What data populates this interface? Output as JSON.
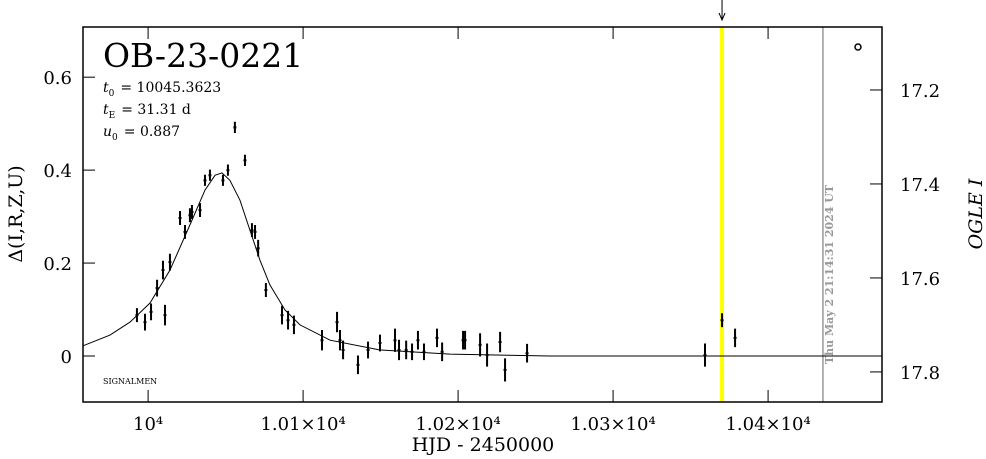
{
  "chart_data": {
    "type": "lightcurve",
    "title": "OB-23-0221",
    "parameters": [
      {
        "symbol": "t",
        "sub": "0",
        "text": "= 10045.3623"
      },
      {
        "symbol": "t",
        "sub": "E",
        "text": "= 31.31 d"
      },
      {
        "symbol": "u",
        "sub": "0",
        "text": "= 0.887"
      }
    ],
    "credit": "SIGNALMEN",
    "x_label": "HJD - 2450000",
    "y_label": "Δ(I,R,Z,U)",
    "y2_label": "OGLE I",
    "xlim": [
      9958,
      10473.5
    ],
    "ylim": [
      -0.099,
      0.708
    ],
    "y2lim": [
      17.864,
      17.066
    ],
    "xticks": [
      {
        "value": 10000,
        "label": "10⁴"
      },
      {
        "value": 10100,
        "label": "1.01×10⁴"
      },
      {
        "value": 10200,
        "label": "1.02×10⁴"
      },
      {
        "value": 10300,
        "label": "1.03×10⁴"
      },
      {
        "value": 10400,
        "label": "1.04×10⁴"
      }
    ],
    "yticks": [
      0,
      0.2,
      0.4,
      0.6
    ],
    "y2ticks": [
      17.2,
      17.4,
      17.6,
      17.8
    ],
    "points": {
      "color": "#000000",
      "x": [
        9992.8,
        9998,
        10001.9,
        10005.8,
        10009.6,
        10010.9,
        10014.1,
        10020.6,
        10023.8,
        10027,
        10028.3,
        10033.5,
        10036.7,
        10039.9,
        10048.3,
        10051.5,
        10056,
        10062.5,
        10067,
        10069,
        10071,
        10076,
        10086.4,
        10090.3,
        10094.1,
        10112.2,
        10121.9,
        10123.8,
        10125.8,
        10135.4,
        10141.9,
        10149.6,
        10159.3,
        10161.9,
        10166.5,
        10170.3,
        10174.1,
        10178,
        10186.4,
        10189.7,
        10203.2,
        10204.5,
        10214.2,
        10218.7,
        10227.1,
        10230.3,
        10244.5,
        10359.3,
        10370.3,
        10378.7
      ],
      "values": [
        0.088,
        0.073,
        0.095,
        0.146,
        0.185,
        0.088,
        0.202,
        0.297,
        0.267,
        0.303,
        0.31,
        0.314,
        0.378,
        0.389,
        0.378,
        0.4,
        0.492,
        0.421,
        0.271,
        0.267,
        0.232,
        0.142,
        0.088,
        0.077,
        0.067,
        0.034,
        0.073,
        0.034,
        0.013,
        -0.019,
        0.013,
        0.028,
        0.034,
        0.013,
        0.013,
        0.009,
        0.034,
        0.009,
        0.039,
        0.009,
        0.034,
        0.034,
        0.024,
        0.002,
        0.03,
        -0.03,
        0.006,
        0.002,
        0.077,
        0.039
      ],
      "errors": [
        0.015,
        0.018,
        0.018,
        0.018,
        0.02,
        0.022,
        0.018,
        0.015,
        0.015,
        0.015,
        0.015,
        0.015,
        0.012,
        0.012,
        0.012,
        0.012,
        0.012,
        0.012,
        0.015,
        0.015,
        0.018,
        0.015,
        0.02,
        0.02,
        0.02,
        0.022,
        0.022,
        0.022,
        0.02,
        0.02,
        0.018,
        0.018,
        0.025,
        0.022,
        0.02,
        0.018,
        0.02,
        0.018,
        0.02,
        0.02,
        0.02,
        0.02,
        0.025,
        0.025,
        0.022,
        0.025,
        0.02,
        0.025,
        0.015,
        0.02
      ]
    },
    "model": {
      "color": "#000000",
      "x": [
        9958,
        9975.4,
        9988.3,
        10001.2,
        10014.1,
        10027,
        10036.7,
        10043.2,
        10047.7,
        10052.8,
        10059.3,
        10065.7,
        10072.2,
        10078.6,
        10088.3,
        10098,
        10117.4,
        10149.6,
        10194.8,
        10259.3,
        10473.5
      ],
      "values": [
        0.022,
        0.045,
        0.073,
        0.114,
        0.185,
        0.282,
        0.357,
        0.389,
        0.394,
        0.378,
        0.335,
        0.271,
        0.206,
        0.153,
        0.099,
        0.067,
        0.034,
        0.013,
        0.004,
        0,
        0
      ]
    },
    "markers": [
      {
        "x": 10370.3,
        "color": "#ffff00",
        "arrow": true
      },
      {
        "x": 10435.4,
        "color": "#999999",
        "label": "Thu May  2 21:14:31 2024 UT"
      }
    ]
  }
}
